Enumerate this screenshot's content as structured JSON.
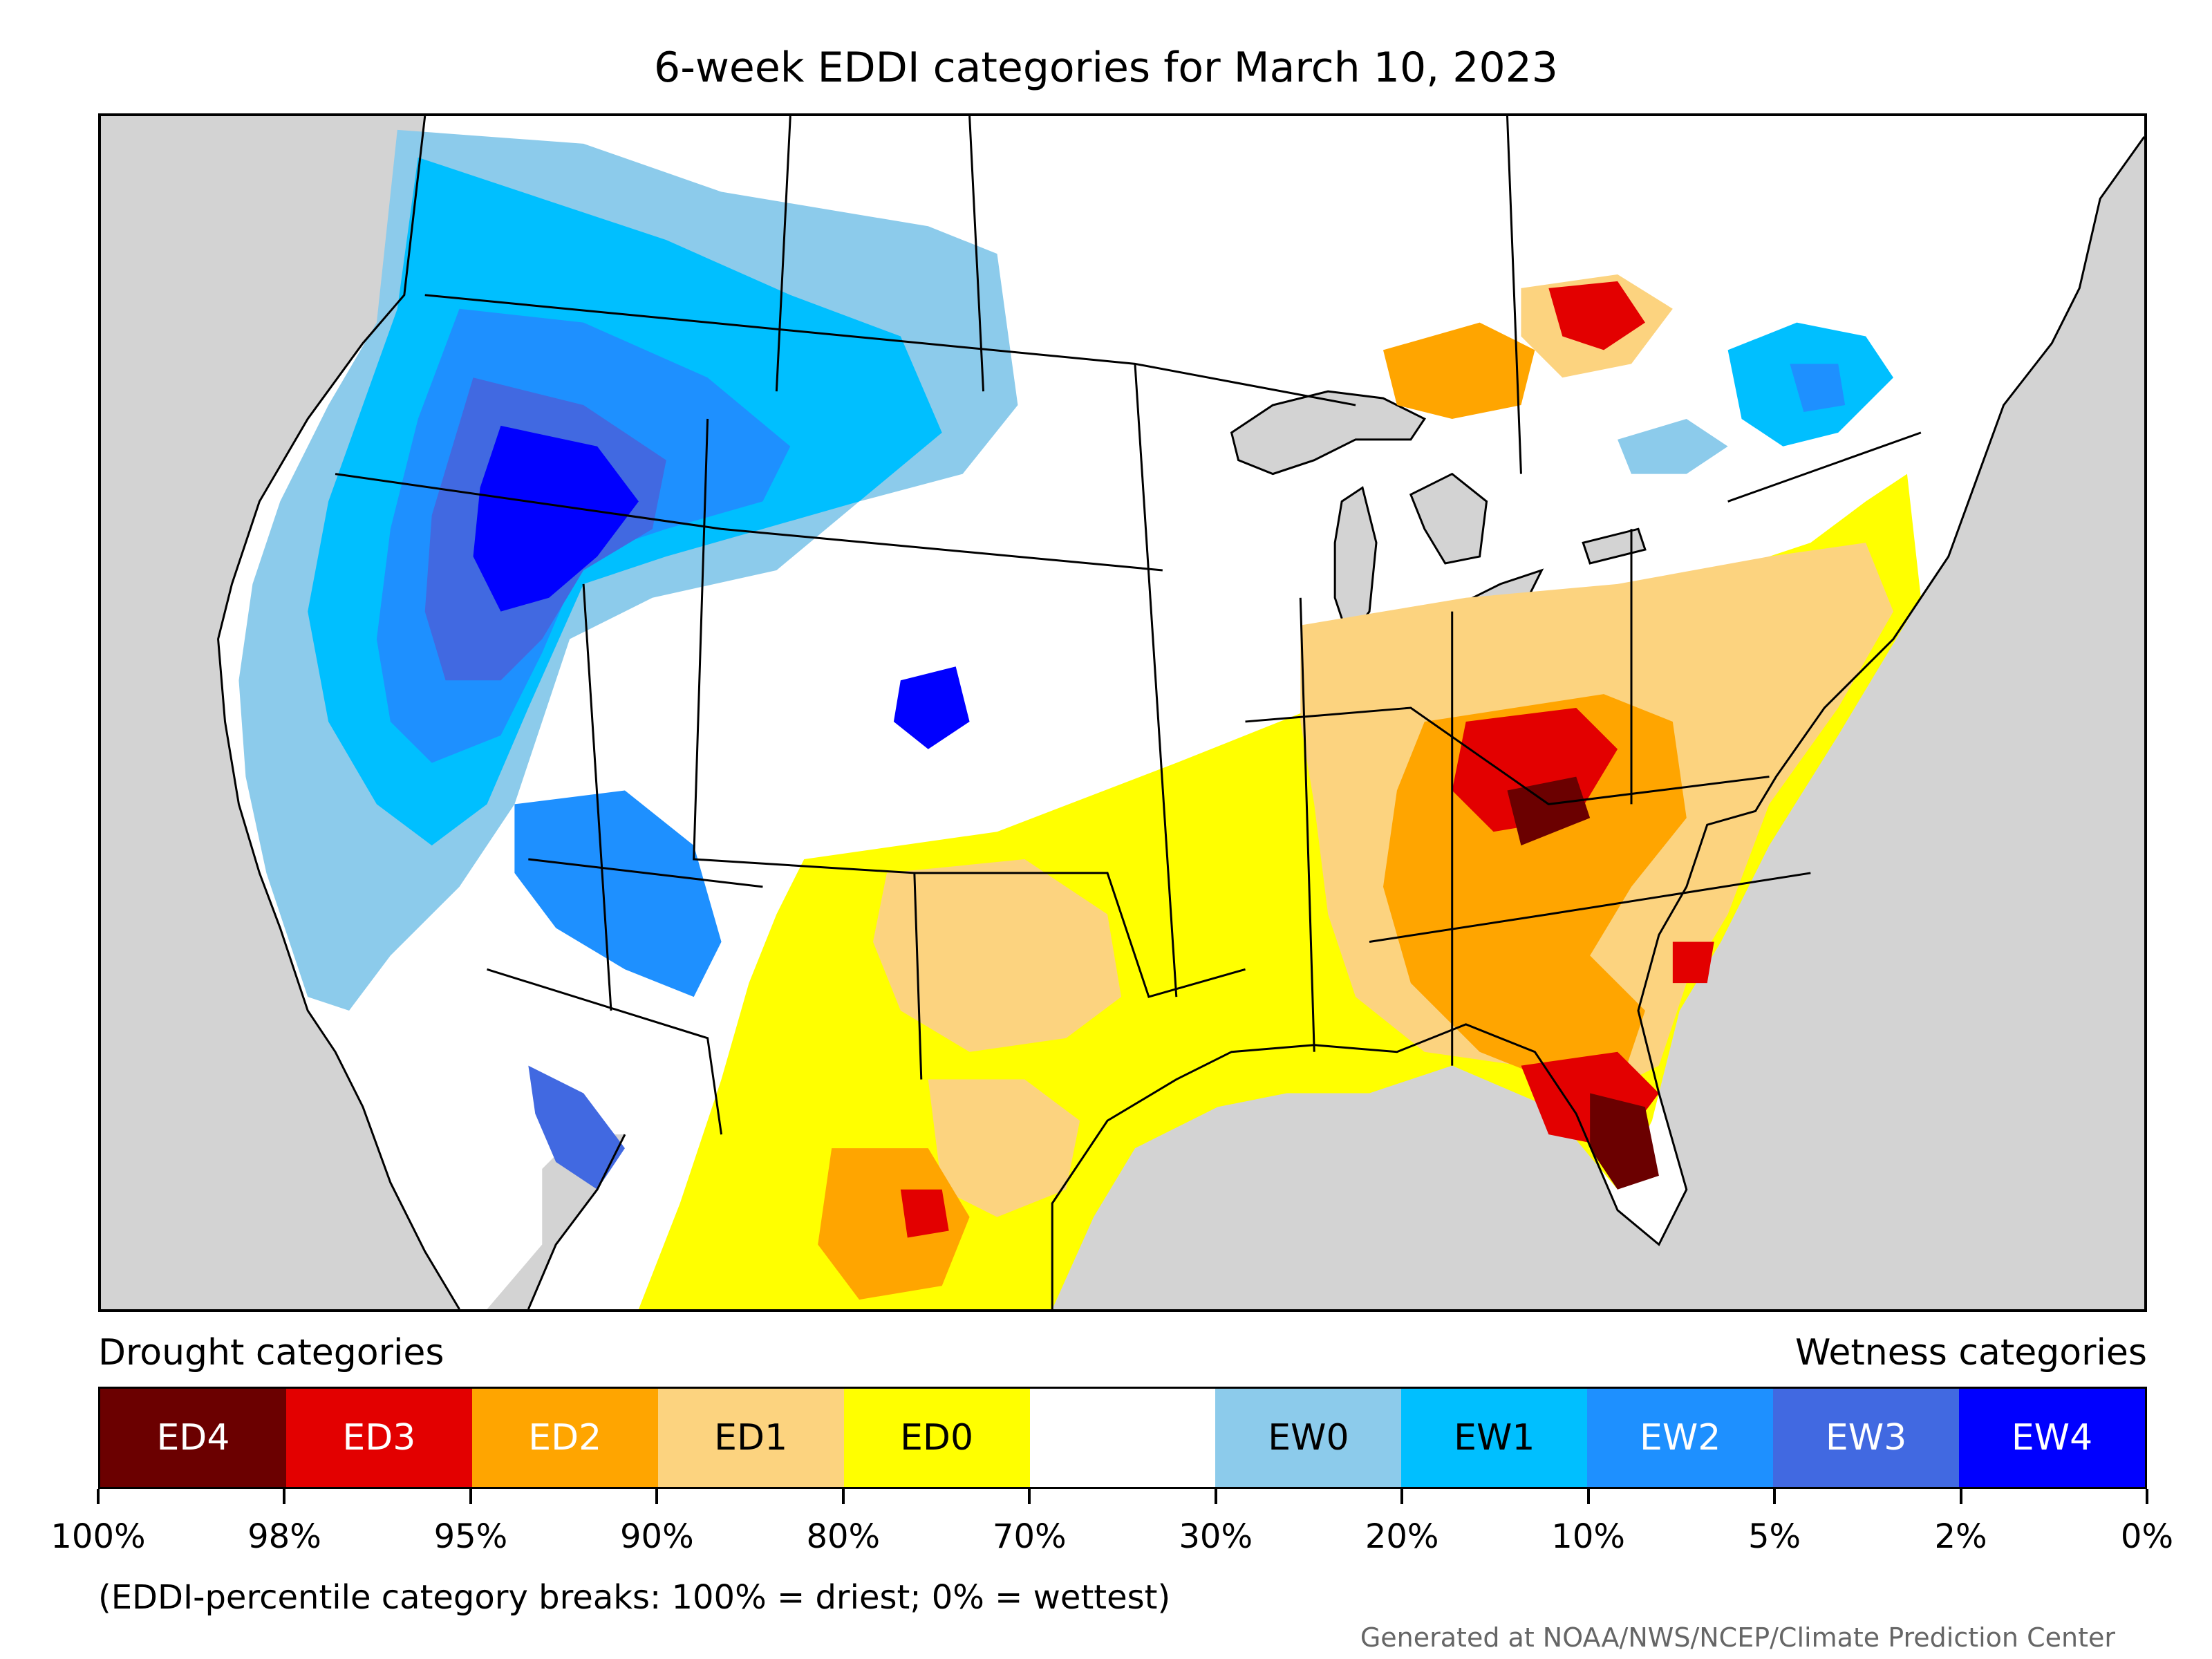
{
  "title": "6-week EDDI categories for March 10, 2023",
  "legend": {
    "left_heading": "Drought categories",
    "right_heading": "Wetness categories",
    "categories": [
      {
        "label": "ED4",
        "color": "#6b0000",
        "text_color": "#ffffff"
      },
      {
        "label": "ED3",
        "color": "#e30000",
        "text_color": "#ffffff"
      },
      {
        "label": "ED2",
        "color": "#ffa500",
        "text_color": "#ffffff"
      },
      {
        "label": "ED1",
        "color": "#fcd37f",
        "text_color": "#000000"
      },
      {
        "label": "ED0",
        "color": "#ffff00",
        "text_color": "#000000"
      },
      {
        "label": "",
        "color": "#ffffff",
        "text_color": "#000000"
      },
      {
        "label": "EW0",
        "color": "#8ccbeb",
        "text_color": "#000000"
      },
      {
        "label": "EW1",
        "color": "#00bfff",
        "text_color": "#000000"
      },
      {
        "label": "EW2",
        "color": "#1e90ff",
        "text_color": "#ffffff"
      },
      {
        "label": "EW3",
        "color": "#4169e1",
        "text_color": "#ffffff"
      },
      {
        "label": "EW4",
        "color": "#0000ff",
        "text_color": "#ffffff"
      }
    ],
    "breaks": [
      "100%",
      "98%",
      "95%",
      "90%",
      "80%",
      "70%",
      "30%",
      "20%",
      "10%",
      "5%",
      "2%",
      "0%"
    ]
  },
  "note": "(EDDI-percentile category breaks: 100% = driest; 0% = wettest)",
  "credit": "Generated at NOAA/NWS/NCEP/Climate Prediction Center",
  "colors": {
    "ocean_background": "#d3d3d3",
    "land": "#ffffff",
    "boundaries": "#000000"
  }
}
